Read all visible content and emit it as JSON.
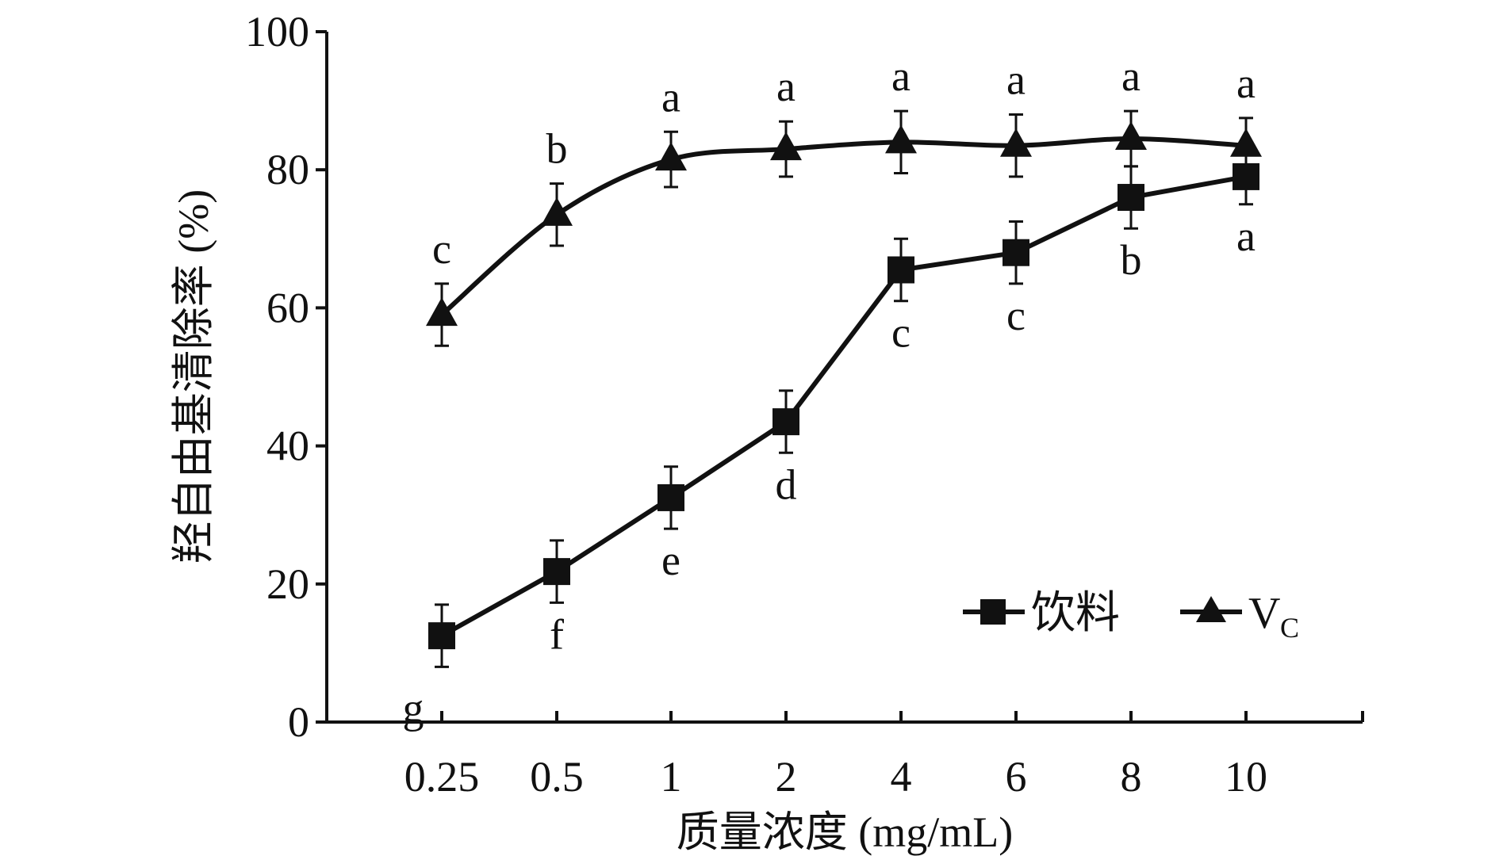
{
  "chart_data": {
    "type": "line",
    "categories": [
      "0.25",
      "0.5",
      "1",
      "2",
      "4",
      "6",
      "8",
      "10"
    ],
    "xlabel": "质量浓度 (mg/mL)",
    "ylabel": "羟自由基清除率 (%)",
    "ylim": [
      0,
      100
    ],
    "yticks": [
      "0",
      "20",
      "40",
      "60",
      "80",
      "100"
    ],
    "grid": false,
    "legend_position": "bottom-right",
    "series": [
      {
        "name": "饮料",
        "marker": "square",
        "color": "#111111",
        "values": [
          12.5,
          21.8,
          32.5,
          43.5,
          65.5,
          68.0,
          76.0,
          79.0
        ],
        "errors": [
          4.5,
          4.5,
          4.5,
          4.5,
          4.5,
          4.5,
          4.5,
          4.0
        ],
        "letters": [
          "g",
          "f",
          "e",
          "d",
          "c",
          "c",
          "b",
          "a"
        ]
      },
      {
        "name": "V",
        "name_subscript": "C",
        "marker": "triangle",
        "color": "#111111",
        "values": [
          59.0,
          73.5,
          81.5,
          83.0,
          84.0,
          83.5,
          84.5,
          83.5
        ],
        "errors": [
          4.5,
          4.5,
          4.0,
          4.0,
          4.5,
          4.5,
          4.0,
          4.0
        ],
        "letters": [
          "c",
          "b",
          "a",
          "a",
          "a",
          "a",
          "a",
          "a"
        ]
      }
    ]
  }
}
